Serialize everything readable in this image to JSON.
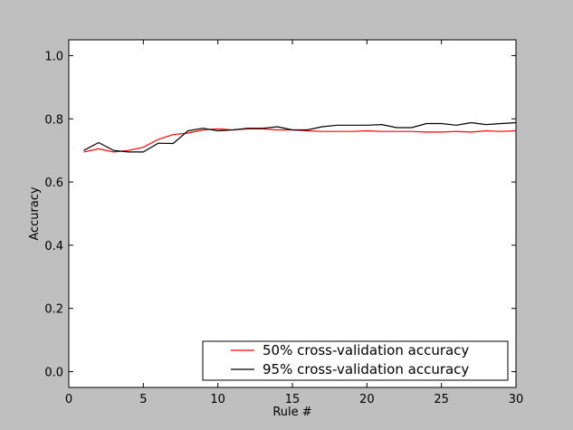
{
  "chart_data": {
    "type": "line",
    "xlabel": "Rule #",
    "ylabel": "Accuracy",
    "xlim": [
      0,
      30
    ],
    "ylim": [
      -0.05,
      1.05
    ],
    "xticks": [
      0,
      5,
      10,
      15,
      20,
      25,
      30
    ],
    "yticks": [
      0.0,
      0.2,
      0.4,
      0.6,
      0.8,
      1.0
    ],
    "grid": false,
    "legend_position": "bottom-right",
    "series": [
      {
        "name": "50% cross-validation accuracy",
        "color": "#ff0000",
        "x": [
          1,
          2,
          3,
          4,
          5,
          6,
          7,
          8,
          9,
          10,
          11,
          12,
          13,
          14,
          15,
          16,
          17,
          18,
          19,
          20,
          21,
          22,
          23,
          24,
          25,
          26,
          27,
          28,
          29,
          30
        ],
        "y": [
          0.695,
          0.705,
          0.695,
          0.7,
          0.71,
          0.735,
          0.75,
          0.755,
          0.765,
          0.768,
          0.765,
          0.768,
          0.768,
          0.765,
          0.765,
          0.762,
          0.76,
          0.76,
          0.76,
          0.762,
          0.76,
          0.76,
          0.76,
          0.758,
          0.758,
          0.76,
          0.758,
          0.762,
          0.76,
          0.762
        ]
      },
      {
        "name": "95% cross-validation accuracy",
        "color": "#000000",
        "x": [
          1,
          2,
          3,
          4,
          5,
          6,
          7,
          8,
          9,
          10,
          11,
          12,
          13,
          14,
          15,
          16,
          17,
          18,
          19,
          20,
          21,
          22,
          23,
          24,
          25,
          26,
          27,
          28,
          29,
          30
        ],
        "y": [
          0.7,
          0.725,
          0.7,
          0.695,
          0.695,
          0.723,
          0.722,
          0.762,
          0.77,
          0.762,
          0.765,
          0.77,
          0.77,
          0.775,
          0.765,
          0.765,
          0.775,
          0.78,
          0.78,
          0.78,
          0.782,
          0.772,
          0.772,
          0.785,
          0.785,
          0.78,
          0.788,
          0.782,
          0.785,
          0.788
        ]
      }
    ]
  }
}
